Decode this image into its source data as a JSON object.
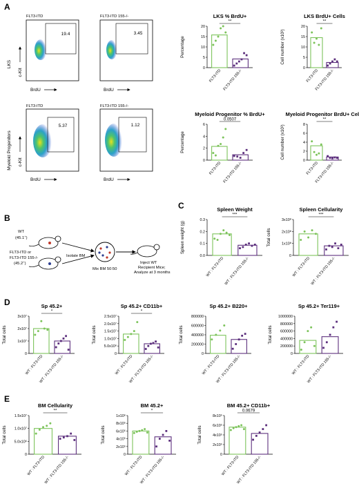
{
  "panel_labels": [
    "A",
    "B",
    "C",
    "D",
    "E"
  ],
  "colors": {
    "wt": "#7cc35a",
    "ko": "#5c2f7d",
    "line": "#000000"
  },
  "flow": {
    "row_labels": [
      "LKS",
      "Myeloid Progenitors"
    ],
    "col_titles": [
      "FLT3-ITD",
      "FLT3-ITD 155-/-"
    ],
    "x_axis": "BrdU",
    "y_axis": "c-Kit",
    "gate_values": [
      [
        "19.4",
        "3.45"
      ],
      [
        "5.37",
        "1.12"
      ]
    ]
  },
  "schematic": {
    "wt_label": "WT",
    "wt_sub": "(45.1",
    "wt_sup": "+",
    "ko_label1": "FLT3-ITD or",
    "ko_label2": "FLT3-ITD 155-/-",
    "ko_sub": "(45.2",
    "ko_sup": "+",
    "isolate": "Isolate BM",
    "mix": "Mix BM 50:50",
    "inject1": "Inject WT",
    "inject2": "Recipient Mice;",
    "inject3": "Analyze at 3 months"
  },
  "chart_data": [
    {
      "id": "A1",
      "type": "bar",
      "title": "LKS % BrdU+",
      "ylabel": "Percentage",
      "ylim": [
        0,
        20
      ],
      "yticks": [
        "0",
        "5",
        "10",
        "15",
        "20"
      ],
      "categories": [
        "FLT3-ITD",
        "FLT3-ITD 155-/-"
      ],
      "values": [
        15.8,
        4.2
      ],
      "points": [
        [
          11,
          13,
          15,
          19,
          20,
          17
        ],
        [
          1,
          2,
          3,
          4,
          7,
          6
        ]
      ],
      "sig": "**"
    },
    {
      "id": "A2",
      "type": "bar",
      "title": "LKS BrdU+ Cells",
      "ylabel": "Cell number (x10³)",
      "ylim": [
        0,
        20
      ],
      "yticks": [
        "0",
        "5",
        "10",
        "15",
        "20"
      ],
      "categories": [
        "FLT3-ITD",
        "FLT3-ITD 155-/-"
      ],
      "values": [
        14.5,
        2.5
      ],
      "points": [
        [
          17,
          12,
          14,
          11,
          19
        ],
        [
          1,
          2,
          3,
          4,
          3
        ]
      ],
      "sig": "**"
    },
    {
      "id": "A3",
      "type": "bar",
      "title": "Myeloid Progenitor % BrdU+",
      "ylabel": "Percentage",
      "ylim": [
        0,
        6
      ],
      "yticks": [
        "0",
        "2",
        "4",
        "6"
      ],
      "categories": [
        "FLT3-ITD",
        "FLT3-ITD 155-/-"
      ],
      "values": [
        2.3,
        0.9
      ],
      "points": [
        [
          1.2,
          0.8,
          2.4,
          2.7,
          3.8,
          5.2
        ],
        [
          0.7,
          0.6,
          0.4,
          1.2,
          1.7
        ]
      ],
      "sig": "0.0507"
    },
    {
      "id": "A4",
      "type": "bar",
      "title": "Myeloid Progenitor BrdU+ Cells",
      "ylabel": "Cell number (x10³)",
      "ylim": [
        0,
        8
      ],
      "yticks": [
        "0",
        "2",
        "4",
        "6",
        "8"
      ],
      "categories": [
        "FLT3-ITD",
        "FLT3-ITD 155-/-"
      ],
      "values": [
        3.2,
        0.7
      ],
      "points": [
        [
          4.2,
          1.8,
          1.2,
          1.5,
          3.5
        ],
        [
          0.9,
          0.5,
          0.4,
          0.6,
          0.5
        ]
      ],
      "sig": "**"
    },
    {
      "id": "C1",
      "type": "bar",
      "title": "Spleen Weight",
      "ylabel": "Spleen weight (g)",
      "ylim": [
        0,
        0.3
      ],
      "yticks": [
        "0.0",
        "0.1",
        "0.2",
        "0.3"
      ],
      "categories": [
        "WT : FLT3-ITD",
        "WT : FLT3-ITD 155-/-"
      ],
      "values": [
        0.18,
        0.085
      ],
      "points": [
        [
          0.14,
          0.13,
          0.18,
          0.21,
          0.19,
          0.17
        ],
        [
          0.06,
          0.07,
          0.09,
          0.1,
          0.08,
          0.09
        ]
      ],
      "sig": "***"
    },
    {
      "id": "C2",
      "type": "bar",
      "title": "Spleen Cellularity",
      "ylabel": "Total cells",
      "ylim": [
        0,
        300000000
      ],
      "yticks": [
        "0",
        "1x10⁸",
        "2x10⁸",
        "3x10⁸"
      ],
      "categories": [
        "WT : FLT3-ITD",
        "WT : FLT3-ITD 155-/-"
      ],
      "values": [
        180000000,
        80000000
      ],
      "points": [
        [
          130000000,
          200000000,
          150000000,
          210000000,
          180000000
        ],
        [
          50000000,
          80000000,
          70000000,
          100000000,
          60000000,
          90000000
        ]
      ],
      "sig": "***"
    },
    {
      "id": "D1",
      "type": "bar",
      "title": "Sp 45.2+",
      "ylabel": "Total cells",
      "ylim": [
        0,
        30000000
      ],
      "yticks": [
        "0",
        "1x10⁷",
        "2x10⁷",
        "3x10⁷"
      ],
      "categories": [
        "WT : FLT3-ITD",
        "WT : FLT3-ITD 155-/-"
      ],
      "values": [
        20000000,
        10000000
      ],
      "points": [
        [
          15000000,
          18000000,
          26000000,
          20000000,
          19000000
        ],
        [
          5000000,
          8000000,
          10000000,
          12000000,
          14000000,
          3000000
        ]
      ],
      "sig": "*"
    },
    {
      "id": "D2",
      "type": "bar",
      "title": "Sp 45.2+ CD11b+",
      "ylabel": "Total cells",
      "ylim": [
        0,
        25000000
      ],
      "yticks": [
        "0",
        "5.0x10⁶",
        "1.0x10⁷",
        "1.5x10⁷",
        "2.0x10⁷",
        "2.5x10⁷"
      ],
      "categories": [
        "WT : FLT3-ITD",
        "WT : FLT3-ITD 155-/-"
      ],
      "values": [
        13000000,
        6500000
      ],
      "points": [
        [
          9000000,
          11000000,
          13000000,
          15000000,
          21000000
        ],
        [
          3000000,
          5000000,
          6500000,
          7000000,
          8000000,
          4000000
        ]
      ],
      "sig": "*"
    },
    {
      "id": "D3",
      "type": "bar",
      "title": "Sp 45.2+ B220+",
      "ylabel": "Total cells",
      "ylim": [
        0,
        800000
      ],
      "yticks": [
        "0",
        "200000",
        "400000",
        "600000",
        "800000"
      ],
      "categories": [
        "WT : FLT3-ITD",
        "WT : FLT3-ITD 155-/-"
      ],
      "values": [
        390000,
        300000
      ],
      "points": [
        [
          300000,
          400000,
          490000,
          600000
        ],
        [
          100000,
          200000,
          300000,
          380000,
          420000
        ]
      ],
      "sig": ""
    },
    {
      "id": "D4",
      "type": "bar",
      "title": "Sp 45.2+ Ter119+",
      "ylabel": "Total cells",
      "ylim": [
        0,
        1000000
      ],
      "yticks": [
        "0",
        "200000",
        "400000",
        "600000",
        "800000",
        "1000000"
      ],
      "categories": [
        "WT : FLT3-ITD",
        "WT : FLT3-ITD 155-/-"
      ],
      "values": [
        350000,
        450000
      ],
      "points": [
        [
          100000,
          300000,
          600000,
          700000,
          200000
        ],
        [
          150000,
          300000,
          500000,
          700000,
          850000
        ]
      ],
      "sig": ""
    },
    {
      "id": "E1",
      "type": "bar",
      "title": "BM Cellularity",
      "ylabel": "Total cells",
      "ylim": [
        0,
        15000000
      ],
      "yticks": [
        "0",
        "5.0x10⁶",
        "1.0x10⁷",
        "1.5x10⁷"
      ],
      "categories": [
        "WT : FLT3-ITD",
        "WT : FLT3-ITD 155-/-"
      ],
      "values": [
        10000000,
        7000000
      ],
      "points": [
        [
          8000000,
          9500000,
          10500000,
          11000000,
          12000000
        ],
        [
          6000000,
          6500000,
          7000000,
          8000000,
          5500000
        ]
      ],
      "sig": "**"
    },
    {
      "id": "E2",
      "type": "bar",
      "title": "BM 45.2+",
      "ylabel": "Total cells",
      "ylim": [
        0,
        1000000
      ],
      "yticks": [
        "0",
        "2x10⁵",
        "4x10⁵",
        "6x10⁵",
        "8x10⁵",
        "1x10⁶"
      ],
      "categories": [
        "WT : FLT3-ITD",
        "WT : FLT3-ITD 155-/-"
      ],
      "values": [
        600000,
        450000
      ],
      "points": [
        [
          550000,
          580000,
          600000,
          620000,
          650000,
          560000
        ],
        [
          200000,
          400000,
          500000,
          600000,
          350000
        ]
      ],
      "sig": "*"
    },
    {
      "id": "E3",
      "type": "bar",
      "title": "BM 45.2+ CD11b+",
      "ylabel": "Total cells",
      "ylim": [
        0,
        800000
      ],
      "yticks": [
        "0",
        "2x10⁵",
        "4x10⁵",
        "6x10⁵",
        "8x10⁵"
      ],
      "categories": [
        "WT : FLT3-ITD",
        "WT : FLT3-ITD 155-/-"
      ],
      "values": [
        560000,
        430000
      ],
      "points": [
        [
          500000,
          540000,
          560000,
          580000,
          600000,
          520000
        ],
        [
          300000,
          380000,
          450000,
          520000,
          600000
        ]
      ],
      "sig": "0.0679"
    }
  ]
}
